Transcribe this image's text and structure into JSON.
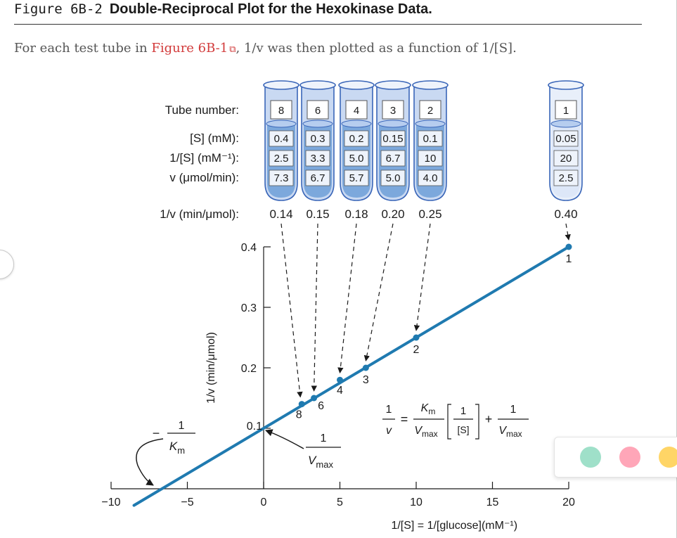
{
  "figure": {
    "number": "Figure 6B-2",
    "title": "Double-Reciprocal Plot for the Hexokinase Data."
  },
  "caption": {
    "prefix": "For each test tube in ",
    "link": "Figure 6B-1",
    "suffix": ", 1/v was then plotted as a function of 1/[S]."
  },
  "chart_data": {
    "type": "line",
    "xlabel": "1/[S] = 1/[glucose](mM⁻¹)",
    "ylabel": "1/v (min/μmol)",
    "xlim": [
      -10,
      20
    ],
    "ylim": [
      0,
      0.4
    ],
    "x_ticks": [
      -10,
      -5,
      0,
      5,
      10,
      15,
      20
    ],
    "y_ticks": [
      0.1,
      0.2,
      0.3,
      0.4
    ],
    "table_labels": {
      "tube": "Tube number:",
      "s": "[S] (mM):",
      "inv_s": "1/[S] (mM⁻¹):",
      "v": "v (μmol/min):",
      "inv_v": "1/v (min/μmol):"
    },
    "tubes": [
      {
        "tube": "8",
        "s": "0.4",
        "inv_s": "2.5",
        "v": "7.3",
        "inv_v": "0.14"
      },
      {
        "tube": "6",
        "s": "0.3",
        "inv_s": "3.3",
        "v": "6.7",
        "inv_v": "0.15"
      },
      {
        "tube": "4",
        "s": "0.2",
        "inv_s": "5.0",
        "v": "5.7",
        "inv_v": "0.18"
      },
      {
        "tube": "3",
        "s": "0.15",
        "inv_s": "6.7",
        "v": "5.0",
        "inv_v": "0.20"
      },
      {
        "tube": "2",
        "s": "0.1",
        "inv_s": "10",
        "v": "4.0",
        "inv_v": "0.25"
      },
      {
        "tube": "1",
        "s": "0.05",
        "inv_s": "20",
        "v": "2.5",
        "inv_v": "0.40"
      }
    ],
    "points": [
      {
        "x": 2.5,
        "y": 0.14,
        "label": "8"
      },
      {
        "x": 3.3,
        "y": 0.15,
        "label": "6"
      },
      {
        "x": 5.0,
        "y": 0.18,
        "label": "4"
      },
      {
        "x": 6.7,
        "y": 0.2,
        "label": "3"
      },
      {
        "x": 10,
        "y": 0.25,
        "label": "2"
      },
      {
        "x": 20,
        "y": 0.4,
        "label": "1"
      }
    ],
    "line": {
      "x_start": -8.5,
      "x_end": 20,
      "color": "#1f7ab0"
    },
    "annotations": {
      "y_intercept_value": "0.1",
      "y_intercept_label": "1 / Vmax",
      "x_intercept_label": "− 1 / Km",
      "equation": "1/v = Km/Vmax [1/[S]] + 1/Vmax"
    },
    "colors": {
      "line": "#1f7ab0",
      "point": "#1f7ab0",
      "tube_dark": "#6f9fd8",
      "tube_light": "#c9d9f2",
      "tube_outline": "#3a66b8"
    }
  },
  "ui": {
    "color_dots": [
      "#9fe0c9",
      "#ffa6b8",
      "#ffd566"
    ]
  }
}
